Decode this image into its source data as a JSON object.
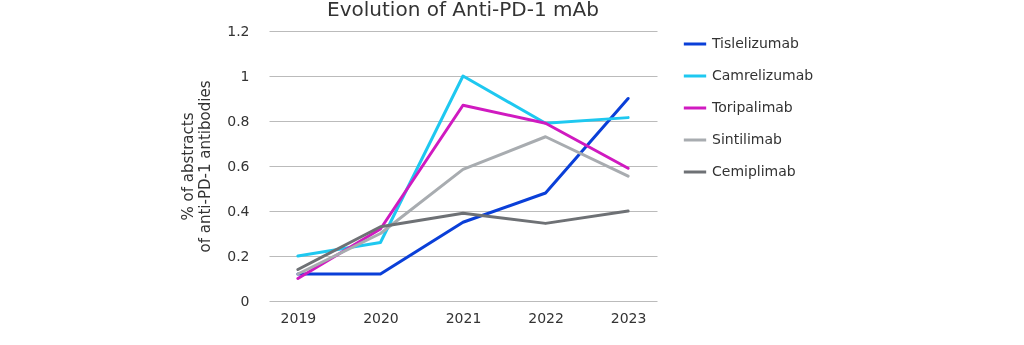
{
  "chart_data": {
    "type": "line",
    "title": "Evolution of Anti-PD-1 mAb",
    "ylabel": "% of abstracts\nof anti-PD-1 antibodies",
    "categories": [
      "2019",
      "2020",
      "2021",
      "2022",
      "2023"
    ],
    "series": [
      {
        "name": "Tislelizumab",
        "color": "#0a3fd8",
        "values": [
          0.12,
          0.12,
          0.35,
          0.48,
          0.9
        ]
      },
      {
        "name": "Camrelizumab",
        "color": "#1ec8f0",
        "values": [
          0.2,
          0.26,
          1.0,
          0.79,
          0.815
        ]
      },
      {
        "name": "Toripalimab",
        "color": "#d01ac0",
        "values": [
          0.1,
          0.32,
          0.87,
          0.79,
          0.59
        ]
      },
      {
        "name": "Sintilimab",
        "color": "#a8acb0",
        "values": [
          0.12,
          0.3,
          0.585,
          0.73,
          0.555
        ]
      },
      {
        "name": "Cemiplimab",
        "color": "#6e7175",
        "values": [
          0.14,
          0.33,
          0.39,
          0.345,
          0.4
        ]
      }
    ],
    "ylim": [
      0,
      1.2
    ],
    "yticks": [
      0,
      0.2,
      0.4,
      0.6,
      0.8,
      1,
      1.2
    ],
    "grid": "y",
    "legend": "right",
    "line_style": "solid"
  }
}
